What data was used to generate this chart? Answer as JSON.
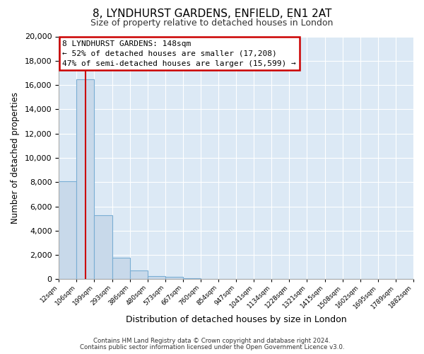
{
  "title_line1": "8, LYNDHURST GARDENS, ENFIELD, EN1 2AT",
  "title_line2": "Size of property relative to detached houses in London",
  "xlabel": "Distribution of detached houses by size in London",
  "ylabel": "Number of detached properties",
  "bar_values": [
    8100,
    16500,
    5300,
    1800,
    700,
    270,
    190,
    100,
    0,
    0,
    0,
    0,
    0,
    0,
    0,
    0,
    0,
    0,
    0,
    0
  ],
  "bar_labels": [
    "12sqm",
    "106sqm",
    "199sqm",
    "293sqm",
    "386sqm",
    "480sqm",
    "573sqm",
    "667sqm",
    "760sqm",
    "854sqm",
    "947sqm",
    "1041sqm",
    "1134sqm",
    "1228sqm",
    "1321sqm",
    "1415sqm",
    "1508sqm",
    "1602sqm",
    "1695sqm",
    "1789sqm",
    "1882sqm"
  ],
  "bar_color": "#c8d9ea",
  "bar_edge_color": "#7aaed4",
  "red_line_x": 1.52,
  "annotation_title": "8 LYNDHURST GARDENS: 148sqm",
  "annotation_line1": "← 52% of detached houses are smaller (17,208)",
  "annotation_line2": "47% of semi-detached houses are larger (15,599) →",
  "annotation_box_facecolor": "#ffffff",
  "annotation_box_edgecolor": "#cc0000",
  "ylim": [
    0,
    20000
  ],
  "yticks": [
    0,
    2000,
    4000,
    6000,
    8000,
    10000,
    12000,
    14000,
    16000,
    18000,
    20000
  ],
  "footer_line1": "Contains HM Land Registry data © Crown copyright and database right 2024.",
  "footer_line2": "Contains public sector information licensed under the Open Government Licence v3.0.",
  "fig_bg_color": "#ffffff",
  "axes_bg_color": "#dce9f5",
  "grid_color": "#ffffff"
}
